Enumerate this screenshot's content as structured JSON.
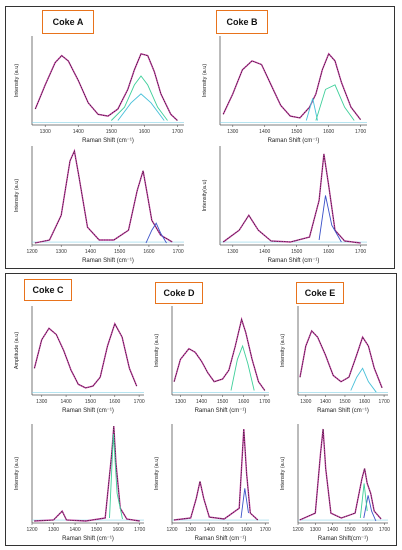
{
  "colors": {
    "frame": "#333333",
    "axis": "#555555",
    "title_border": "#e8731c",
    "fit_magenta": "#c2389f",
    "fit_green": "#3fcf9a",
    "fit_cyan": "#47c0d9",
    "fit_blue": "#3c52c9",
    "baseline": "#8ad3e8",
    "raw": "#222222"
  },
  "top_group": {
    "coke_a": {
      "title": "Coke A"
    },
    "coke_b": {
      "title": "Coke B"
    }
  },
  "bottom_group": {
    "coke_c": {
      "title": "Coke C"
    },
    "coke_d": {
      "title": "Coke D"
    },
    "coke_e": {
      "title": "Coke E"
    }
  },
  "chart_data": [
    {
      "id": "coke-a-top",
      "type": "line",
      "xlabel": "Raman Shift (cm⁻¹)",
      "ylabel": "Intensity (a.u)",
      "xticks": [
        1300,
        1400,
        1500,
        1600,
        1700
      ],
      "xlim": [
        1260,
        1720
      ],
      "ylim": [
        0,
        1
      ],
      "series": [
        {
          "kind": "raw",
          "values": [
            [
              1270,
              0.18
            ],
            [
              1300,
              0.45
            ],
            [
              1330,
              0.7
            ],
            [
              1350,
              0.78
            ],
            [
              1370,
              0.72
            ],
            [
              1400,
              0.5
            ],
            [
              1430,
              0.25
            ],
            [
              1460,
              0.12
            ],
            [
              1490,
              0.1
            ],
            [
              1520,
              0.18
            ],
            [
              1550,
              0.4
            ],
            [
              1570,
              0.62
            ],
            [
              1590,
              0.8
            ],
            [
              1610,
              0.78
            ],
            [
              1630,
              0.6
            ],
            [
              1650,
              0.35
            ],
            [
              1680,
              0.12
            ],
            [
              1700,
              0.05
            ]
          ]
        },
        {
          "kind": "fit",
          "color": "fit_green",
          "values": [
            [
              1500,
              0.05
            ],
            [
              1540,
              0.2
            ],
            [
              1570,
              0.45
            ],
            [
              1590,
              0.55
            ],
            [
              1610,
              0.45
            ],
            [
              1640,
              0.2
            ],
            [
              1670,
              0.05
            ]
          ]
        },
        {
          "kind": "fit",
          "color": "fit_cyan",
          "values": [
            [
              1520,
              0.05
            ],
            [
              1560,
              0.25
            ],
            [
              1590,
              0.35
            ],
            [
              1620,
              0.25
            ],
            [
              1660,
              0.05
            ]
          ]
        }
      ]
    },
    {
      "id": "coke-b-top",
      "type": "line",
      "xlabel": "Raman Shift (cm⁻¹)",
      "ylabel": "Intensity (a.u)",
      "xticks": [
        1300,
        1400,
        1500,
        1600,
        1700
      ],
      "xlim": [
        1260,
        1720
      ],
      "ylim": [
        0,
        1
      ],
      "series": [
        {
          "kind": "raw",
          "values": [
            [
              1270,
              0.12
            ],
            [
              1300,
              0.35
            ],
            [
              1330,
              0.62
            ],
            [
              1360,
              0.72
            ],
            [
              1390,
              0.68
            ],
            [
              1420,
              0.45
            ],
            [
              1450,
              0.22
            ],
            [
              1480,
              0.1
            ],
            [
              1510,
              0.08
            ],
            [
              1540,
              0.2
            ],
            [
              1560,
              0.35
            ],
            [
              1580,
              0.62
            ],
            [
              1600,
              0.8
            ],
            [
              1620,
              0.72
            ],
            [
              1640,
              0.48
            ],
            [
              1670,
              0.2
            ],
            [
              1700,
              0.06
            ]
          ]
        },
        {
          "kind": "fit",
          "color": "fit_cyan",
          "values": [
            [
              1530,
              0.05
            ],
            [
              1550,
              0.3
            ],
            [
              1565,
              0.05
            ]
          ]
        },
        {
          "kind": "fit",
          "color": "fit_green",
          "values": [
            [
              1560,
              0.05
            ],
            [
              1590,
              0.4
            ],
            [
              1620,
              0.45
            ],
            [
              1650,
              0.2
            ],
            [
              1680,
              0.05
            ]
          ]
        }
      ]
    },
    {
      "id": "coke-a-bottom",
      "type": "line",
      "xlabel": "Raman Shift (cm⁻¹)",
      "ylabel": "Intensity (a.u)",
      "xticks": [
        1200,
        1300,
        1400,
        1500,
        1600,
        1700
      ],
      "xlim": [
        1200,
        1720
      ],
      "ylim": [
        0,
        1
      ],
      "series": [
        {
          "kind": "raw",
          "values": [
            [
              1210,
              0.02
            ],
            [
              1260,
              0.05
            ],
            [
              1300,
              0.3
            ],
            [
              1330,
              0.85
            ],
            [
              1345,
              0.95
            ],
            [
              1360,
              0.7
            ],
            [
              1390,
              0.18
            ],
            [
              1430,
              0.05
            ],
            [
              1480,
              0.05
            ],
            [
              1530,
              0.15
            ],
            [
              1560,
              0.55
            ],
            [
              1580,
              0.75
            ],
            [
              1595,
              0.5
            ],
            [
              1610,
              0.25
            ],
            [
              1620,
              0.2
            ],
            [
              1640,
              0.1
            ],
            [
              1680,
              0.03
            ]
          ]
        },
        {
          "kind": "fit",
          "color": "fit_blue",
          "values": [
            [
              1590,
              0.02
            ],
            [
              1610,
              0.15
            ],
            [
              1625,
              0.22
            ],
            [
              1640,
              0.12
            ],
            [
              1660,
              0.02
            ]
          ]
        }
      ]
    },
    {
      "id": "coke-b-bottom",
      "type": "line",
      "xlabel": "Raman Shift (cm⁻¹)",
      "ylabel": "Intensity(a.u)",
      "xticks": [
        1300,
        1400,
        1500,
        1600,
        1700
      ],
      "xlim": [
        1260,
        1720
      ],
      "ylim": [
        0,
        1
      ],
      "series": [
        {
          "kind": "raw",
          "values": [
            [
              1270,
              0.03
            ],
            [
              1320,
              0.15
            ],
            [
              1350,
              0.3
            ],
            [
              1380,
              0.15
            ],
            [
              1420,
              0.04
            ],
            [
              1480,
              0.03
            ],
            [
              1540,
              0.08
            ],
            [
              1570,
              0.45
            ],
            [
              1585,
              0.92
            ],
            [
              1600,
              0.6
            ],
            [
              1620,
              0.15
            ],
            [
              1650,
              0.04
            ],
            [
              1700,
              0.02
            ]
          ]
        },
        {
          "kind": "fit",
          "color": "fit_blue",
          "values": [
            [
              1570,
              0.05
            ],
            [
              1590,
              0.5
            ],
            [
              1610,
              0.2
            ],
            [
              1640,
              0.03
            ]
          ]
        }
      ]
    },
    {
      "id": "coke-c-top",
      "type": "line",
      "xlabel": "Raman Shift (cm⁻¹)",
      "ylabel": "Amplitude (a.u)",
      "xticks": [
        1300,
        1400,
        1500,
        1600,
        1700
      ],
      "xlim": [
        1260,
        1720
      ],
      "ylim": [
        0,
        1
      ],
      "series": [
        {
          "kind": "raw",
          "values": [
            [
              1270,
              0.3
            ],
            [
              1300,
              0.62
            ],
            [
              1330,
              0.75
            ],
            [
              1360,
              0.68
            ],
            [
              1390,
              0.5
            ],
            [
              1420,
              0.28
            ],
            [
              1450,
              0.12
            ],
            [
              1480,
              0.08
            ],
            [
              1510,
              0.1
            ],
            [
              1540,
              0.2
            ],
            [
              1570,
              0.55
            ],
            [
              1600,
              0.8
            ],
            [
              1630,
              0.65
            ],
            [
              1660,
              0.3
            ],
            [
              1690,
              0.1
            ]
          ]
        }
      ]
    },
    {
      "id": "coke-d-top",
      "type": "line",
      "xlabel": "Raman Shift (cm⁻¹)",
      "ylabel": "Intensity (a.u)",
      "xticks": [
        1300,
        1400,
        1500,
        1600,
        1700
      ],
      "xlim": [
        1260,
        1720
      ],
      "ylim": [
        0,
        1
      ],
      "series": [
        {
          "kind": "raw",
          "values": [
            [
              1270,
              0.15
            ],
            [
              1300,
              0.4
            ],
            [
              1340,
              0.52
            ],
            [
              1370,
              0.48
            ],
            [
              1400,
              0.38
            ],
            [
              1430,
              0.25
            ],
            [
              1460,
              0.15
            ],
            [
              1500,
              0.18
            ],
            [
              1530,
              0.28
            ],
            [
              1560,
              0.55
            ],
            [
              1590,
              0.85
            ],
            [
              1610,
              0.7
            ],
            [
              1640,
              0.4
            ],
            [
              1670,
              0.15
            ],
            [
              1700,
              0.05
            ]
          ]
        },
        {
          "kind": "fit",
          "color": "fit_green",
          "values": [
            [
              1540,
              0.05
            ],
            [
              1570,
              0.4
            ],
            [
              1595,
              0.55
            ],
            [
              1620,
              0.35
            ],
            [
              1650,
              0.05
            ]
          ]
        }
      ]
    },
    {
      "id": "coke-e-top",
      "type": "line",
      "xlabel": "Raman Shift (cm⁻¹)",
      "ylabel": "Intensity (a.u)",
      "xticks": [
        1300,
        1400,
        1500,
        1600,
        1700
      ],
      "xlim": [
        1260,
        1720
      ],
      "ylim": [
        0,
        1
      ],
      "series": [
        {
          "kind": "raw",
          "values": [
            [
              1270,
              0.2
            ],
            [
              1300,
              0.55
            ],
            [
              1330,
              0.72
            ],
            [
              1360,
              0.65
            ],
            [
              1400,
              0.45
            ],
            [
              1440,
              0.22
            ],
            [
              1480,
              0.15
            ],
            [
              1520,
              0.2
            ],
            [
              1560,
              0.45
            ],
            [
              1590,
              0.65
            ],
            [
              1620,
              0.55
            ],
            [
              1650,
              0.3
            ],
            [
              1690,
              0.08
            ]
          ]
        },
        {
          "kind": "fit",
          "color": "fit_cyan",
          "values": [
            [
              1530,
              0.05
            ],
            [
              1560,
              0.2
            ],
            [
              1590,
              0.3
            ],
            [
              1620,
              0.15
            ],
            [
              1660,
              0.03
            ]
          ]
        }
      ]
    },
    {
      "id": "coke-c-bottom",
      "type": "line",
      "xlabel": "Raman Shift (cm⁻¹)",
      "ylabel": "Intensity (a.u)",
      "xticks": [
        1200,
        1300,
        1400,
        1500,
        1600,
        1700
      ],
      "xlim": [
        1200,
        1720
      ],
      "ylim": [
        0,
        1
      ],
      "series": [
        {
          "kind": "raw",
          "values": [
            [
              1210,
              0.02
            ],
            [
              1300,
              0.03
            ],
            [
              1340,
              0.12
            ],
            [
              1360,
              0.03
            ],
            [
              1450,
              0.02
            ],
            [
              1540,
              0.05
            ],
            [
              1570,
              0.7
            ],
            [
              1580,
              0.98
            ],
            [
              1590,
              0.6
            ],
            [
              1610,
              0.15
            ],
            [
              1640,
              0.04
            ],
            [
              1700,
              0.02
            ]
          ]
        },
        {
          "kind": "fit",
          "color": "fit_green",
          "values": [
            [
              1560,
              0.05
            ],
            [
              1578,
              0.9
            ],
            [
              1595,
              0.3
            ],
            [
              1620,
              0.04
            ]
          ]
        }
      ]
    },
    {
      "id": "coke-d-bottom",
      "type": "line",
      "xlabel": "Raman Shift (cm⁻¹)",
      "ylabel": "Intensity (a.u)",
      "xticks": [
        1200,
        1300,
        1400,
        1500,
        1600,
        1700
      ],
      "xlim": [
        1200,
        1720
      ],
      "ylim": [
        0,
        1
      ],
      "series": [
        {
          "kind": "raw",
          "values": [
            [
              1210,
              0.03
            ],
            [
              1300,
              0.05
            ],
            [
              1330,
              0.25
            ],
            [
              1350,
              0.42
            ],
            [
              1370,
              0.25
            ],
            [
              1400,
              0.06
            ],
            [
              1480,
              0.04
            ],
            [
              1560,
              0.15
            ],
            [
              1585,
              0.95
            ],
            [
              1600,
              0.5
            ],
            [
              1620,
              0.1
            ],
            [
              1660,
              0.03
            ]
          ]
        },
        {
          "kind": "fit",
          "color": "fit_blue",
          "values": [
            [
              1570,
              0.05
            ],
            [
              1590,
              0.35
            ],
            [
              1610,
              0.1
            ]
          ]
        }
      ]
    },
    {
      "id": "coke-e-bottom",
      "type": "line",
      "xlabel": "Raman Shift(cm⁻¹)",
      "ylabel": "Intensity (a.u)",
      "xticks": [
        1200,
        1300,
        1400,
        1500,
        1600,
        1700
      ],
      "xlim": [
        1200,
        1720
      ],
      "ylim": [
        0,
        1
      ],
      "series": [
        {
          "kind": "raw",
          "values": [
            [
              1210,
              0.03
            ],
            [
              1300,
              0.1
            ],
            [
              1330,
              0.7
            ],
            [
              1345,
              0.95
            ],
            [
              1360,
              0.55
            ],
            [
              1390,
              0.1
            ],
            [
              1450,
              0.05
            ],
            [
              1530,
              0.1
            ],
            [
              1570,
              0.45
            ],
            [
              1585,
              0.55
            ],
            [
              1600,
              0.4
            ],
            [
              1620,
              0.3
            ],
            [
              1640,
              0.12
            ],
            [
              1680,
              0.04
            ]
          ]
        },
        {
          "kind": "fit",
          "color": "fit_blue",
          "values": [
            [
              1580,
              0.05
            ],
            [
              1605,
              0.28
            ],
            [
              1625,
              0.12
            ],
            [
              1650,
              0.02
            ]
          ]
        },
        {
          "kind": "fit",
          "color": "fit_green",
          "values": [
            [
              1560,
              0.05
            ],
            [
              1582,
              0.4
            ],
            [
              1600,
              0.12
            ]
          ]
        }
      ]
    }
  ]
}
